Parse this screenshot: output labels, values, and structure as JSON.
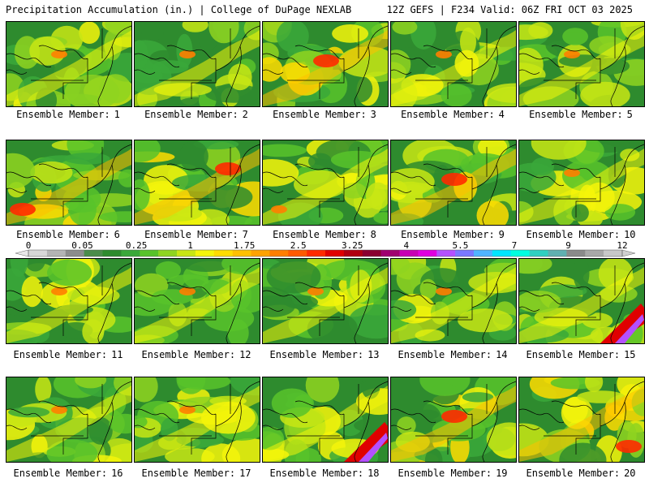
{
  "header": {
    "title": "Precipitation Accumulation (in.) | College of DuPage NEXLAB",
    "run_info": "12Z GEFS | F234 Valid: 06Z FRI OCT 03 2025"
  },
  "panel_prefix": "Ensemble Member:",
  "members": [
    {
      "number": "1",
      "level": 3,
      "heavy": "n"
    },
    {
      "number": "2",
      "level": 2,
      "heavy": "n"
    },
    {
      "number": "3",
      "level": 4,
      "heavy": "c"
    },
    {
      "number": "4",
      "level": 3,
      "heavy": "n"
    },
    {
      "number": "5",
      "level": 2,
      "heavy": "n"
    },
    {
      "number": "6",
      "level": 4,
      "heavy": "sw"
    },
    {
      "number": "7",
      "level": 4,
      "heavy": "ne"
    },
    {
      "number": "8",
      "level": 3,
      "heavy": "sw"
    },
    {
      "number": "9",
      "level": 4,
      "heavy": "c"
    },
    {
      "number": "10",
      "level": 3,
      "heavy": "n"
    },
    {
      "number": "11",
      "level": 3,
      "heavy": "n"
    },
    {
      "number": "12",
      "level": 2,
      "heavy": "n"
    },
    {
      "number": "13",
      "level": 3,
      "heavy": "n"
    },
    {
      "number": "14",
      "level": 3,
      "heavy": "n"
    },
    {
      "number": "15",
      "level": 2,
      "heavy": "coast"
    },
    {
      "number": "16",
      "level": 3,
      "heavy": "n"
    },
    {
      "number": "17",
      "level": 3,
      "heavy": "n"
    },
    {
      "number": "18",
      "level": 3,
      "heavy": "coast"
    },
    {
      "number": "19",
      "level": 4,
      "heavy": "c"
    },
    {
      "number": "20",
      "level": 4,
      "heavy": "se"
    }
  ],
  "colorbar": {
    "tick_labels": [
      "0",
      "0.05",
      "0.25",
      "1",
      "1.75",
      "2.5",
      "3.25",
      "4",
      "5.5",
      "7",
      "9",
      "12"
    ],
    "colors": [
      "#d8d8d8",
      "#b4b4b4",
      "#8c8c8c",
      "#4a8c4a",
      "#2e8b2e",
      "#3aa83a",
      "#58c32a",
      "#8fd420",
      "#c8e614",
      "#f5f50a",
      "#ffdc00",
      "#ffc000",
      "#ffa200",
      "#ff7e00",
      "#ff5a00",
      "#ff2a00",
      "#e00000",
      "#b00010",
      "#8a0030",
      "#a00070",
      "#c800b4",
      "#e000e0",
      "#b450ff",
      "#7a78ff",
      "#50b4ff",
      "#00e6ff",
      "#00ffe0",
      "#30d0c0",
      "#60b0b0",
      "#8a8a8a",
      "#a8a8a8",
      "#c8c8c8"
    ]
  }
}
